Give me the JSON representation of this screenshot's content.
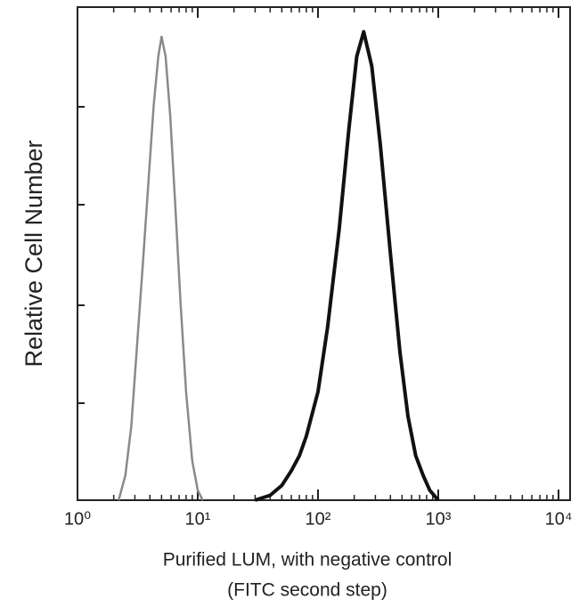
{
  "chart_data": {
    "type": "line",
    "y_label": "Relative Cell Number",
    "x_label": [
      "Purified LUM, with negative control",
      "(FITC second step)"
    ],
    "x_scale": "log",
    "xlim": [
      1,
      10000
    ],
    "xticks": [
      {
        "value": 1,
        "label": "10⁰"
      },
      {
        "value": 10,
        "label": "10¹"
      },
      {
        "value": 100,
        "label": "10²"
      },
      {
        "value": 1000,
        "label": "10³"
      },
      {
        "value": 10000,
        "label": "10⁴"
      }
    ],
    "ylim": [
      0,
      100
    ],
    "series": [
      {
        "color": "#8a8a8a",
        "width": 2.5,
        "x": [
          2.2,
          2.5,
          2.8,
          3.1,
          3.5,
          3.9,
          4.3,
          4.7,
          5.0,
          5.4,
          5.9,
          6.5,
          7.2,
          8.0,
          9.0,
          10.0,
          11.0
        ],
        "values": [
          0,
          5,
          15,
          30,
          48,
          65,
          80,
          90,
          94,
          90,
          78,
          60,
          40,
          22,
          8,
          2,
          0
        ]
      },
      {
        "color": "#111111",
        "width": 4,
        "x": [
          30,
          40,
          50,
          60,
          70,
          80,
          100,
          120,
          150,
          180,
          210,
          240,
          280,
          330,
          400,
          480,
          560,
          650,
          750,
          850,
          1000
        ],
        "values": [
          0,
          1,
          3,
          6,
          9,
          13,
          22,
          35,
          55,
          75,
          90,
          95,
          88,
          72,
          50,
          30,
          17,
          9,
          5,
          2,
          0
        ]
      }
    ]
  }
}
